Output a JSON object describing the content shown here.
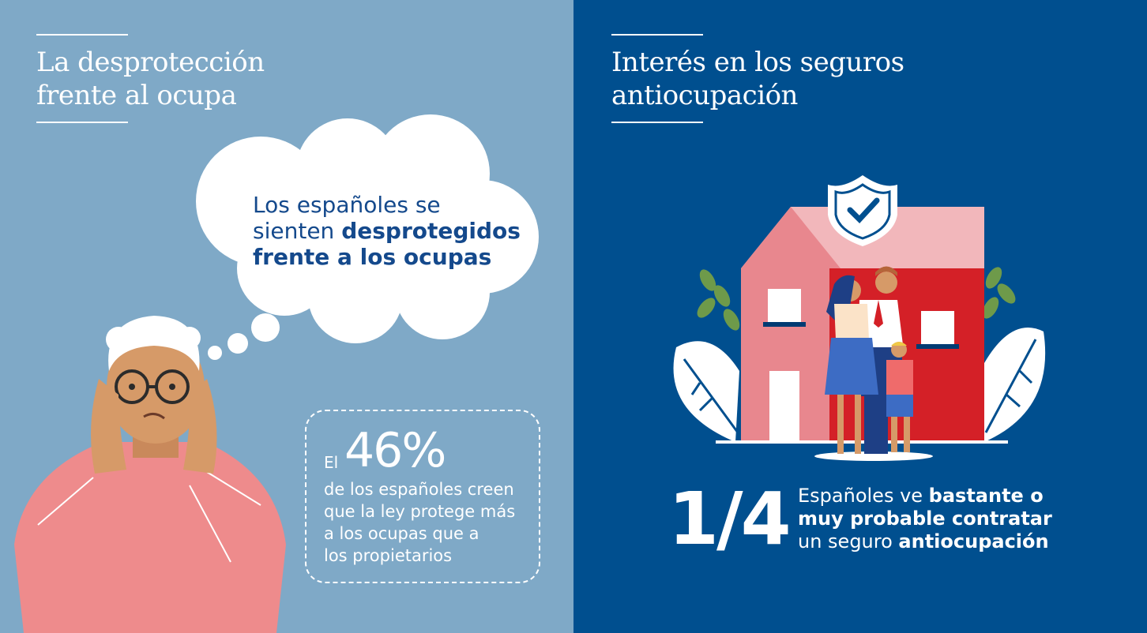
{
  "left": {
    "title_line1": "La desprotección",
    "title_line2": "frente al ocupa",
    "cloud": {
      "line1": "Los españoles se",
      "line2_plain": "sienten ",
      "line2_bold": "desprotegidos",
      "line3_bold": "frente a los ocupas"
    },
    "stat": {
      "prefix": "El",
      "value": "46%",
      "lines": [
        "de los españoles creen",
        "que la ley protege más",
        "a los ocupas que a",
        "los propietarios"
      ]
    }
  },
  "right": {
    "title_line1": "Interés en los seguros",
    "title_line2": "antiocupación",
    "fraction": "1/4",
    "line1_plain": "Españoles ve ",
    "line1_bold": "bastante o",
    "line2_bold": "muy probable contratar",
    "line3_plain": "un seguro ",
    "line3_bold": "antiocupación"
  },
  "colors": {
    "left_bg": "#7fa9c7",
    "right_bg": "#004f8f",
    "accent_text": "#14498c",
    "house_red": "#d42027",
    "house_pink": "#e8878e"
  },
  "icons": [
    "worried-elderly-person-illustration",
    "thought-cloud-illustration",
    "house-family-illustration",
    "shield-check-icon",
    "leaf-icon"
  ]
}
